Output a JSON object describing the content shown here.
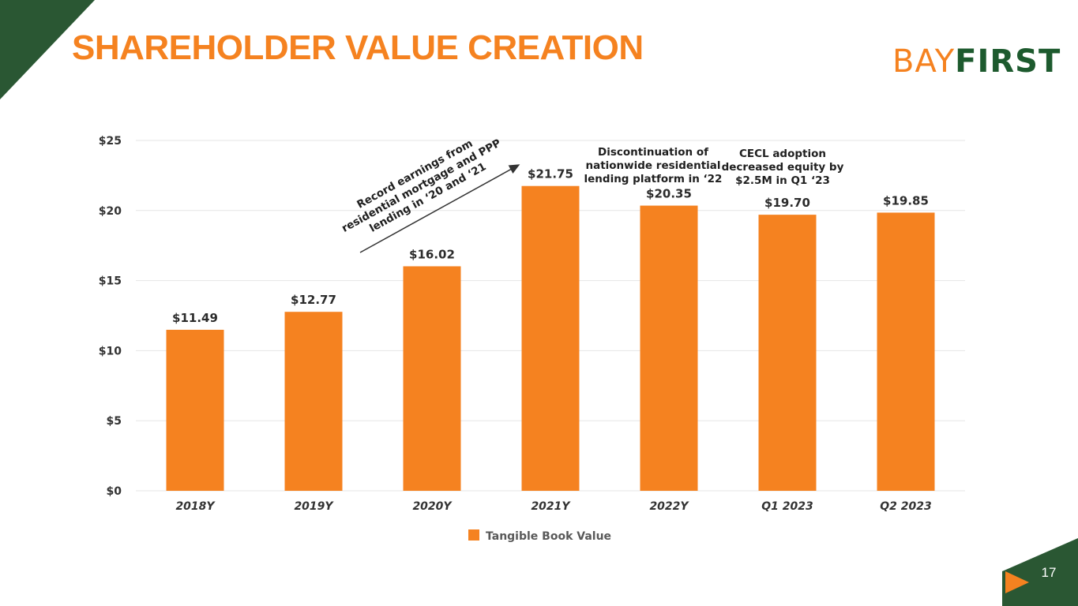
{
  "title": "SHAREHOLDER VALUE CREATION",
  "logo": {
    "part1": "BAY",
    "part2": "FIRST"
  },
  "page_number": "17",
  "colors": {
    "bar": "#f58220",
    "title": "#f58220",
    "brand_green": "#2a5733",
    "grid": "#e6e6e6"
  },
  "chart_data": {
    "type": "bar",
    "categories": [
      "2018Y",
      "2019Y",
      "2020Y",
      "2021Y",
      "2022Y",
      "Q1 2023",
      "Q2 2023"
    ],
    "series": [
      {
        "name": "Tangible Book Value",
        "values": [
          11.49,
          12.77,
          16.02,
          21.75,
          20.35,
          19.7,
          19.85
        ]
      }
    ],
    "data_labels": [
      "$11.49",
      "$12.77",
      "$16.02",
      "$21.75",
      "$20.35",
      "$19.70",
      "$19.85"
    ],
    "ylim": [
      0,
      25
    ],
    "yticks": [
      0,
      5,
      10,
      15,
      20,
      25
    ],
    "ytick_labels": [
      "$0",
      "$5",
      "$10",
      "$15",
      "$20",
      "$25"
    ],
    "legend": {
      "position": "bottom",
      "label": "Tangible Book Value"
    },
    "grid": true,
    "annotations": {
      "trend": [
        "Record earnings from",
        "residential mortgage and PPP",
        "lending in ‘20 and ‘21"
      ],
      "discontinuation": [
        "Discontinuation of",
        "nationwide residential",
        "lending platform in ‘22"
      ],
      "cecl": [
        "CECL adoption",
        "decreased equity by",
        "$2.5M in Q1 ‘23"
      ]
    }
  }
}
